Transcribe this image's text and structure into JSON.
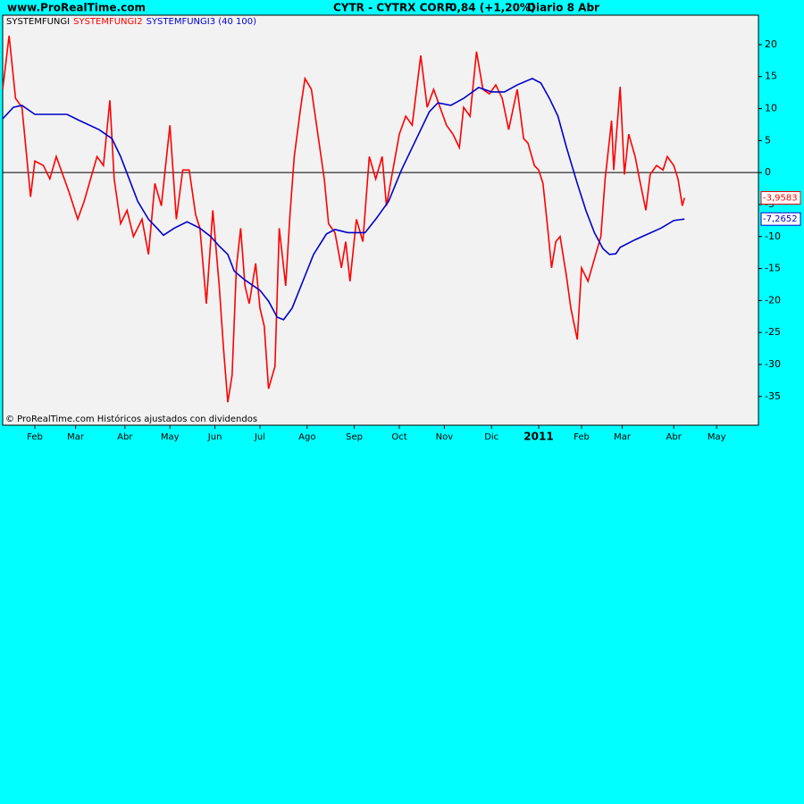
{
  "header": {
    "site": "www.ProRealTime.com",
    "symbol": "CYTR - CYTRX CORP.",
    "quote": "0,84 (+1,20%)",
    "period": "Diario  8 Abr"
  },
  "chart_data": {
    "type": "line",
    "footer": "© ProRealTime.com  Históricos ajustados con dividendos",
    "hline": {
      "value": 0,
      "name": "SYSTEMFUNGI",
      "color": "#000000"
    },
    "xlim": [
      0,
      352.5
    ],
    "xticks": [
      {
        "value": 15,
        "label": "Feb"
      },
      {
        "value": 34,
        "label": "Mar"
      },
      {
        "value": 57,
        "label": "Abr"
      },
      {
        "value": 78,
        "label": "May"
      },
      {
        "value": 99,
        "label": "Jun"
      },
      {
        "value": 120,
        "label": "Jul"
      },
      {
        "value": 142,
        "label": "Ago"
      },
      {
        "value": 164,
        "label": "Sep"
      },
      {
        "value": 185,
        "label": "Oct"
      },
      {
        "value": 206,
        "label": "Nov"
      },
      {
        "value": 228,
        "label": "Dic"
      },
      {
        "value": 250,
        "label": "2011",
        "bold": true
      },
      {
        "value": 270,
        "label": "Feb"
      },
      {
        "value": 289,
        "label": "Mar"
      },
      {
        "value": 313,
        "label": "Abr"
      },
      {
        "value": 333,
        "label": "May"
      }
    ],
    "ylim": [
      -39.5,
      24.6
    ],
    "yticks": [
      -35,
      -30,
      -25,
      -20,
      -15,
      -10,
      -5,
      0,
      5,
      10,
      15,
      20
    ],
    "series": [
      {
        "name": "SYSTEMFUNGI2",
        "color": "#ff0000",
        "x": [
          0,
          3,
          6,
          9,
          11,
          13,
          15,
          19,
          22,
          25,
          28,
          31,
          35,
          38,
          41,
          44,
          47,
          50,
          52,
          55,
          58,
          61,
          65,
          68,
          71,
          74,
          78,
          81,
          84,
          87,
          90,
          92,
          95,
          98,
          101,
          103,
          105,
          107,
          109,
          111,
          113,
          115,
          118,
          120,
          122,
          124,
          127,
          129,
          132,
          134,
          136,
          139,
          141,
          144,
          147,
          150,
          152,
          155,
          158,
          160,
          162,
          165,
          168,
          171,
          174,
          177,
          179,
          182,
          185,
          188,
          191,
          195,
          198,
          201,
          204,
          207,
          210,
          213,
          215,
          218,
          221,
          224,
          227,
          230,
          233,
          236,
          240,
          243,
          245,
          248,
          250,
          252,
          254,
          256,
          258,
          260,
          263,
          265,
          268,
          270,
          273,
          276,
          279,
          281,
          284,
          285,
          288,
          290,
          292,
          295,
          297,
          300,
          302,
          305,
          308,
          310,
          313,
          315,
          317,
          318
        ],
        "values": [
          13,
          21.4,
          11.6,
          10.2,
          3.2,
          -3.8,
          1.8,
          1.1,
          -1,
          2.5,
          -0.3,
          -3.1,
          -7.3,
          -4.5,
          -1,
          2.5,
          1.1,
          11.3,
          -1,
          -8,
          -5.9,
          -10,
          -7.3,
          -12.8,
          -1.7,
          -5.2,
          7.4,
          -7.3,
          0.4,
          0.4,
          -6.6,
          -8.7,
          -20.5,
          -5.9,
          -17.7,
          -27.5,
          -35.9,
          -31.7,
          -14.9,
          -8.7,
          -17.7,
          -20.5,
          -14.2,
          -21.2,
          -24,
          -33.8,
          -30.3,
          -8.7,
          -17.7,
          -6.6,
          2.5,
          10.2,
          14.7,
          13,
          6,
          -1,
          -8,
          -9.4,
          -14.9,
          -10.8,
          -17,
          -7.3,
          -10.8,
          2.5,
          -1,
          2.5,
          -5.2,
          0.4,
          6,
          8.8,
          7.4,
          18.3,
          10.2,
          13,
          10.2,
          7.4,
          6,
          3.9,
          10.2,
          8.8,
          18.9,
          13,
          12.3,
          13.7,
          11.6,
          6.7,
          13,
          5.3,
          4.6,
          1.1,
          0.4,
          -1.7,
          -8,
          -14.9,
          -10.8,
          -10,
          -16.3,
          -21.2,
          -26.1,
          -14.9,
          -17,
          -13.5,
          -10,
          -1,
          8.1,
          0.4,
          13.4,
          -0.3,
          6,
          2.5,
          -1,
          -5.9,
          -0.3,
          1.1,
          0.4,
          2.5,
          1.1,
          -1,
          -5.2,
          -3.9583
        ],
        "value_labels": [
          null,
          null,
          null,
          null,
          null,
          null,
          null,
          null,
          null,
          null,
          null,
          null,
          null,
          null,
          null,
          null,
          null,
          null,
          null,
          null,
          null,
          null,
          null,
          null,
          null,
          null,
          null,
          null,
          null,
          null,
          null,
          null,
          null,
          null,
          null,
          null,
          null,
          null,
          null,
          null,
          null,
          null,
          null,
          null,
          null,
          null,
          null,
          null,
          null,
          null,
          null,
          null,
          null,
          null,
          null,
          null,
          null,
          null,
          null,
          null,
          null,
          null,
          null,
          null,
          null,
          null,
          null,
          null,
          null,
          null,
          null,
          null,
          null,
          null,
          null,
          null,
          null,
          null,
          null,
          null,
          null,
          null,
          null,
          null,
          null,
          null,
          null,
          null,
          null,
          null,
          null,
          null,
          null,
          null,
          null,
          null,
          null,
          null,
          null,
          null,
          null,
          null,
          null,
          null,
          null,
          null,
          null,
          null,
          null,
          null,
          null,
          null,
          null,
          null,
          null,
          null,
          null,
          null,
          null,
          "-3,9583"
        ]
      },
      {
        "name": "SYSTEMFUNGI3 (40 100)",
        "color": "#0000cc",
        "x": [
          0,
          5,
          9,
          15,
          24,
          30,
          36,
          45,
          51,
          55,
          59,
          63,
          68,
          72,
          75,
          80,
          86,
          92,
          97,
          101,
          105,
          108,
          113,
          120,
          124,
          128,
          131,
          135,
          140,
          145,
          151,
          155,
          161,
          169,
          174,
          180,
          186,
          193,
          199,
          203,
          209,
          215,
          222,
          228,
          234,
          240,
          247,
          251,
          255,
          259,
          263,
          268,
          272,
          276,
          280,
          283,
          286,
          288,
          295,
          301,
          307,
          313,
          318
        ],
        "values": [
          8.4,
          10.2,
          10.5,
          9.1,
          9.1,
          9.1,
          8.1,
          6.7,
          5.3,
          2.5,
          -1,
          -4.5,
          -7.3,
          -8.7,
          -9.8,
          -8.7,
          -7.7,
          -8.7,
          -10,
          -11.5,
          -12.8,
          -15.4,
          -16.8,
          -18.4,
          -20.1,
          -22.6,
          -23,
          -21.2,
          -17,
          -12.8,
          -9.6,
          -8.9,
          -9.4,
          -9.4,
          -7.3,
          -4.5,
          0.4,
          5.3,
          9.5,
          10.9,
          10.5,
          11.6,
          13.3,
          12.6,
          12.6,
          13.7,
          14.7,
          14,
          11.6,
          8.8,
          3.9,
          -1.7,
          -5.9,
          -9.4,
          -11.9,
          -12.8,
          -12.7,
          -11.7,
          -10.5,
          -9.6,
          -8.7,
          -7.5,
          -7.2652
        ],
        "value_labels": [
          null,
          null,
          null,
          null,
          null,
          null,
          null,
          null,
          null,
          null,
          null,
          null,
          null,
          null,
          null,
          null,
          null,
          null,
          null,
          null,
          null,
          null,
          null,
          null,
          null,
          null,
          null,
          null,
          null,
          null,
          null,
          null,
          null,
          null,
          null,
          null,
          null,
          null,
          null,
          null,
          null,
          null,
          null,
          null,
          null,
          null,
          null,
          null,
          null,
          null,
          null,
          null,
          null,
          null,
          null,
          null,
          null,
          null,
          null,
          null,
          null,
          null,
          "-7,2652"
        ]
      }
    ]
  }
}
